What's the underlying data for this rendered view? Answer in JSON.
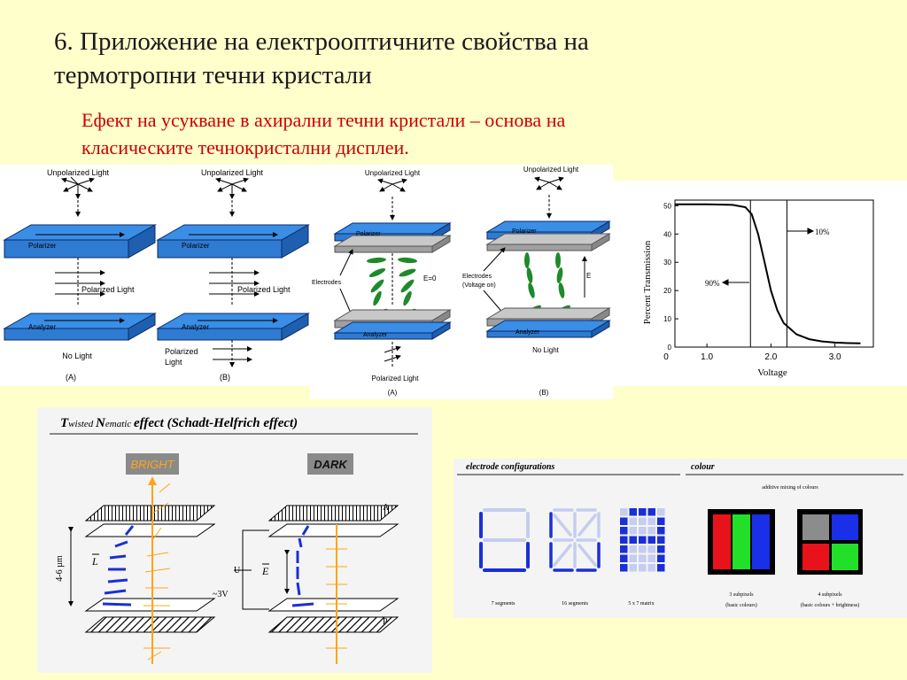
{
  "slide": {
    "title_line1": "6. Приложение на електрооптичните свойства на",
    "title_line2": "термотропни течни кристали",
    "subtitle_line1": "Ефект на усукване в ахирални течни кристали – основа на",
    "subtitle_line2": "класическите течнокристални дисплеи."
  },
  "fig_polarizer": {
    "unpolarized": "Unpolarized Light",
    "polarizer": "Polarizer",
    "polarized_light": "Polarized Light",
    "analyzer": "Analyzer",
    "no_light": "No Light",
    "polarized": "Polarized",
    "light": "Light",
    "label_a": "(A)",
    "label_b": "(B)"
  },
  "fig_electrodes": {
    "unpolarized": "Unpolarized Light",
    "polarizer": "Polarizer",
    "electrodes": "Electrodes",
    "electrodes_b": "Electrodes",
    "voltage_on": "(Voltage on)",
    "e_zero": "E=0",
    "e": "E",
    "analyzer": "Analyzer",
    "polarized_light": "Polarized Light",
    "no_light": "No Light",
    "label_a": "(A)",
    "label_b": "(B)"
  },
  "fig_transmission": {
    "ylabel": "Percent Transmission",
    "xlabel": "Voltage",
    "yticks": [
      "0",
      "10",
      "20",
      "30",
      "40",
      "50"
    ],
    "xticks": [
      "1.0",
      "2.0",
      "3.0"
    ],
    "ann_10": "10%",
    "ann_90": "90%"
  },
  "chart_data": {
    "type": "line",
    "title": "",
    "xlabel": "Voltage",
    "ylabel": "Percent Transmission",
    "xlim": [
      0.5,
      3.6
    ],
    "ylim": [
      0,
      52
    ],
    "x": [
      0.5,
      1.0,
      1.4,
      1.6,
      1.7,
      1.8,
      1.9,
      2.0,
      2.1,
      2.2,
      2.4,
      2.6,
      2.8,
      3.0,
      3.2,
      3.4
    ],
    "series": [
      {
        "values": [
          50.5,
          50.5,
          50.3,
          49.5,
          47.0,
          40.0,
          30.0,
          20.0,
          13.0,
          8.5,
          4.5,
          2.8,
          2.0,
          1.6,
          1.4,
          1.3
        ]
      }
    ],
    "annotations": [
      {
        "text": "90%",
        "x": 1.68
      },
      {
        "text": "10%",
        "x": 2.25
      }
    ],
    "grid": false
  },
  "fig_tn": {
    "title_t": "T",
    "title_wisted": "wisted ",
    "title_n": "N",
    "title_ematic": "ematic ",
    "title_effect": "effect (Schadt-Helfrich effect)",
    "bright": "BRIGHT",
    "dark": "DARK",
    "label_a": "A",
    "label_p": "P",
    "thickness": "4-6 µm",
    "l_vec": "L",
    "u": "U",
    "e_vec": "E",
    "voltage": "~3V"
  },
  "fig_config": {
    "electrode_title": "electrode configurations",
    "colour_title": "colour",
    "additive": "additive mixing of colours",
    "seg7": "7 segments",
    "seg16": "16 segments",
    "matrix": "5 x 7 matrix",
    "sub3": "3 subpixels",
    "sub3b": "(basic colours)",
    "sub4": "4 subpixels",
    "sub4b": "(basic colours + brightness)"
  }
}
